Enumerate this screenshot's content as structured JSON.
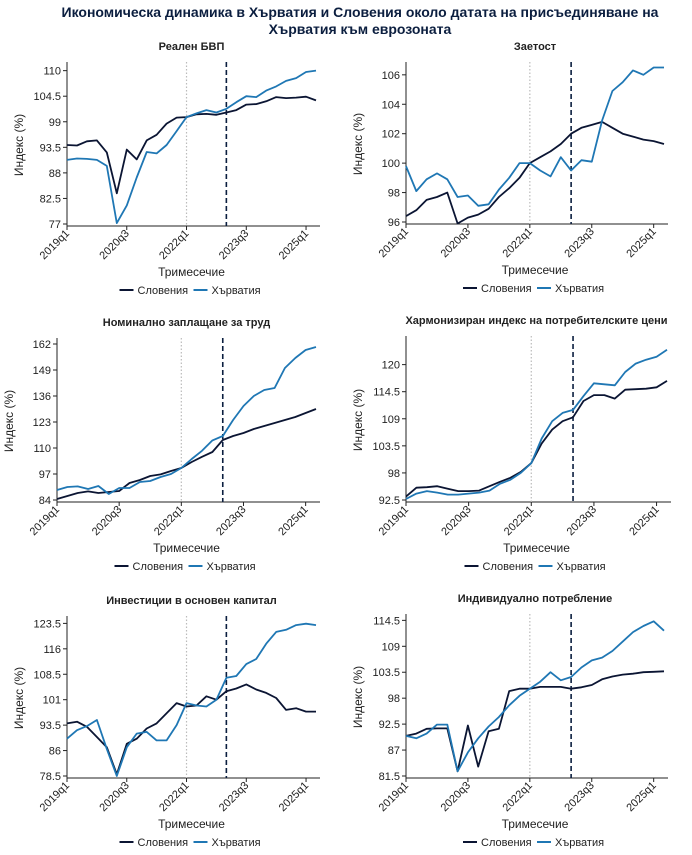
{
  "title_lines": [
    "Икономическа динамика в Хърватия и Словения около датата на присъединяване на",
    "Хърватия към еврозоната"
  ],
  "colors": {
    "slovenia": "#0b1533",
    "croatia": "#1f77b4",
    "axis": "#222222",
    "vline_dotted": "#bbbbbb",
    "vline_dashed": "#0b1e3f"
  },
  "chart_data": [
    {
      "type": "line",
      "title": "Реален БВП",
      "xlabel": "Тримесечие",
      "ylabel": "Индекс (%)",
      "x": [
        "2019q1",
        "2019q2",
        "2019q3",
        "2019q4",
        "2020q1",
        "2020q2",
        "2020q3",
        "2020q4",
        "2021q1",
        "2021q2",
        "2021q3",
        "2021q4",
        "2022q1",
        "2022q2",
        "2022q3",
        "2022q4",
        "2023q1",
        "2023q2",
        "2023q3",
        "2023q4",
        "2024q1",
        "2024q2",
        "2024q3",
        "2024q4",
        "2025q1",
        "2025q2"
      ],
      "x_ticks": [
        "2019q1",
        "2020q3",
        "2022q1",
        "2023q3",
        "2025q1"
      ],
      "y_ticks": [
        77,
        82.5,
        88,
        93.5,
        99,
        104.5,
        110
      ],
      "ylim": [
        77,
        111
      ],
      "vlines": {
        "dotted": "2022q1",
        "dashed": "2023q1"
      },
      "legend": [
        "Словения",
        "Хърватия"
      ],
      "series": [
        {
          "name": "Словения",
          "values": [
            94.0,
            93.9,
            94.8,
            95.0,
            92.4,
            83.6,
            93.0,
            90.9,
            95.0,
            96.2,
            98.6,
            99.9,
            100.0,
            100.6,
            100.7,
            100.5,
            101.0,
            101.5,
            102.7,
            102.8,
            103.4,
            104.3,
            104.1,
            104.2,
            104.4,
            103.6
          ]
        },
        {
          "name": "Хърватия",
          "values": [
            90.8,
            91.1,
            91.0,
            90.8,
            89.5,
            77.2,
            81.0,
            87.0,
            92.5,
            92.2,
            94.0,
            97.0,
            100.0,
            100.8,
            101.5,
            101.0,
            101.8,
            103.2,
            104.5,
            104.3,
            105.7,
            106.6,
            107.8,
            108.4,
            109.7,
            110.0
          ]
        }
      ]
    },
    {
      "type": "line",
      "title": "Заетост",
      "xlabel": "Тримесечие",
      "ylabel": "Индекс (%)",
      "x": [
        "2019q1",
        "2019q2",
        "2019q3",
        "2019q4",
        "2020q1",
        "2020q2",
        "2020q3",
        "2020q4",
        "2021q1",
        "2021q2",
        "2021q3",
        "2021q4",
        "2022q1",
        "2022q2",
        "2022q3",
        "2022q4",
        "2023q1",
        "2023q2",
        "2023q3",
        "2023q4",
        "2024q1",
        "2024q2",
        "2024q3",
        "2024q4",
        "2025q1",
        "2025q2"
      ],
      "x_ticks": [
        "2019q1",
        "2020q3",
        "2022q1",
        "2023q3",
        "2025q1"
      ],
      "y_ticks": [
        96,
        98,
        100,
        102,
        104,
        106
      ],
      "ylim": [
        96,
        106.6
      ],
      "vlines": {
        "dotted": "2022q1",
        "dashed": "2023q1"
      },
      "legend": [
        "Словения",
        "Хърватия"
      ],
      "series": [
        {
          "name": "Словения",
          "values": [
            96.4,
            96.8,
            97.5,
            97.7,
            98.0,
            95.9,
            96.3,
            96.5,
            96.9,
            97.7,
            98.3,
            99.0,
            100.0,
            100.4,
            100.8,
            101.3,
            102.0,
            102.4,
            102.6,
            102.8,
            102.4,
            102.0,
            101.8,
            101.6,
            101.5,
            101.3
          ]
        },
        {
          "name": "Хърватия",
          "values": [
            99.8,
            98.1,
            98.9,
            99.3,
            98.9,
            97.7,
            97.8,
            97.1,
            97.2,
            98.2,
            99.0,
            100.0,
            100.0,
            99.5,
            99.1,
            100.4,
            99.5,
            100.2,
            100.1,
            102.9,
            104.9,
            105.5,
            106.3,
            106.0,
            106.5,
            106.5
          ]
        }
      ]
    },
    {
      "type": "line",
      "title": "Номинално заплащане за труд",
      "xlabel": "Тримесечие",
      "ylabel": "Индекс (%)",
      "x": [
        "2019q1",
        "2019q2",
        "2019q3",
        "2019q4",
        "2020q1",
        "2020q2",
        "2020q3",
        "2020q4",
        "2021q1",
        "2021q2",
        "2021q3",
        "2021q4",
        "2022q1",
        "2022q2",
        "2022q3",
        "2022q4",
        "2023q1",
        "2023q2",
        "2023q3",
        "2023q4",
        "2024q1",
        "2024q2",
        "2024q3",
        "2024q4",
        "2025q1",
        "2025q2"
      ],
      "x_ticks": [
        "2019q1",
        "2020q3",
        "2022q1",
        "2023q3",
        "2025q1"
      ],
      "y_ticks": [
        84,
        97,
        110,
        123,
        136,
        149,
        162
      ],
      "ylim": [
        84,
        163
      ],
      "vlines": {
        "dotted": "2022q1",
        "dashed": "2023q1"
      },
      "legend": [
        "Словения",
        "Хърватия"
      ],
      "series": [
        {
          "name": "Словения",
          "values": [
            84.5,
            86.0,
            87.5,
            88.3,
            87.5,
            88.0,
            88.5,
            92.5,
            94.0,
            96.0,
            96.8,
            98.5,
            100.0,
            103.0,
            105.6,
            108.0,
            114.0,
            116.0,
            117.5,
            119.5,
            121.0,
            122.5,
            124.0,
            125.5,
            127.5,
            129.5
          ]
        },
        {
          "name": "Хърватия",
          "values": [
            89.0,
            90.5,
            90.8,
            89.5,
            91.0,
            87.0,
            90.0,
            90.0,
            93.0,
            93.5,
            95.5,
            97.0,
            100.0,
            104.5,
            108.6,
            113.8,
            116.0,
            124.0,
            131.0,
            136.0,
            139.0,
            140.0,
            150.0,
            155.0,
            159.0,
            160.5
          ]
        }
      ]
    },
    {
      "type": "line",
      "title": "Хармонизиран индекс на потребителските цени",
      "xlabel": "Тримесечие",
      "ylabel": "Индекс (%)",
      "x": [
        "2019q1",
        "2019q2",
        "2019q3",
        "2019q4",
        "2020q1",
        "2020q2",
        "2020q3",
        "2020q4",
        "2021q1",
        "2021q2",
        "2021q3",
        "2021q4",
        "2022q1",
        "2022q2",
        "2022q3",
        "2022q4",
        "2023q1",
        "2023q2",
        "2023q3",
        "2023q4",
        "2024q1",
        "2024q2",
        "2024q3",
        "2024q4",
        "2025q1",
        "2025q2"
      ],
      "x_ticks": [
        "2019q1",
        "2020q3",
        "2022q1",
        "2023q3",
        "2025q1"
      ],
      "y_ticks": [
        92.5,
        98,
        103.5,
        109,
        114.5,
        120
      ],
      "ylim": [
        92.5,
        125
      ],
      "vlines": {
        "dotted": "2022q1",
        "dashed": "2023q1"
      },
      "legend": [
        "Словения",
        "Хърватия"
      ],
      "series": [
        {
          "name": "Словения",
          "values": [
            93.2,
            95.0,
            95.1,
            95.3,
            94.8,
            94.3,
            94.3,
            94.4,
            95.3,
            96.2,
            97.0,
            98.2,
            100.0,
            104.0,
            106.8,
            108.5,
            109.3,
            112.6,
            113.8,
            113.8,
            113.1,
            114.9,
            115.0,
            115.1,
            115.4,
            116.7
          ]
        },
        {
          "name": "Хърватия",
          "values": [
            92.7,
            93.8,
            94.3,
            94.0,
            93.6,
            93.6,
            93.8,
            94.0,
            94.4,
            95.8,
            96.6,
            98.0,
            100.0,
            105.0,
            108.5,
            110.2,
            110.8,
            113.6,
            116.2,
            116.0,
            115.8,
            118.5,
            120.2,
            121.0,
            121.6,
            123.0
          ]
        }
      ]
    },
    {
      "type": "line",
      "title": "Инвестиции в основен капитал",
      "xlabel": "Тримесечие",
      "ylabel": "Индекс (%)",
      "x": [
        "2019q1",
        "2019q2",
        "2019q3",
        "2019q4",
        "2020q1",
        "2020q2",
        "2020q3",
        "2020q4",
        "2021q1",
        "2021q2",
        "2021q3",
        "2021q4",
        "2022q1",
        "2022q2",
        "2022q3",
        "2022q4",
        "2023q1",
        "2023q2",
        "2023q3",
        "2023q4",
        "2024q1",
        "2024q2",
        "2024q3",
        "2024q4",
        "2025q1",
        "2025q2"
      ],
      "x_ticks": [
        "2019q1",
        "2020q3",
        "2022q1",
        "2023q3",
        "2025q1"
      ],
      "y_ticks": [
        78.5,
        86,
        93.5,
        101,
        108.5,
        116,
        123.5
      ],
      "ylim": [
        78.5,
        124.5
      ],
      "vlines": {
        "dotted": "2022q1",
        "dashed": "2023q1"
      },
      "legend": [
        "Словения",
        "Хърватия"
      ],
      "series": [
        {
          "name": "Словения",
          "values": [
            94.0,
            94.5,
            93.0,
            90.0,
            87.0,
            79.0,
            88.0,
            89.5,
            92.5,
            94.0,
            97.0,
            100.0,
            99.0,
            99.3,
            102.0,
            101.0,
            103.5,
            104.3,
            105.5,
            104.0,
            103.0,
            101.5,
            98.0,
            98.5,
            97.5,
            97.5
          ]
        },
        {
          "name": "Хърватия",
          "values": [
            89.5,
            92.0,
            93.2,
            95.0,
            86.5,
            78.5,
            87.0,
            91.0,
            91.5,
            89.0,
            89.0,
            93.5,
            100.0,
            99.3,
            99.0,
            101.0,
            107.5,
            108.0,
            111.5,
            113.0,
            117.5,
            121.0,
            121.6,
            123.0,
            123.4,
            123.0
          ]
        }
      ]
    },
    {
      "type": "line",
      "title": "Индивидуално потребление",
      "xlabel": "Тримесечие",
      "ylabel": "Индекс (%)",
      "x": [
        "2019q1",
        "2019q2",
        "2019q3",
        "2019q4",
        "2020q1",
        "2020q2",
        "2020q3",
        "2020q4",
        "2021q1",
        "2021q2",
        "2021q3",
        "2021q4",
        "2022q1",
        "2022q2",
        "2022q3",
        "2022q4",
        "2023q1",
        "2023q2",
        "2023q3",
        "2023q4",
        "2024q1",
        "2024q2",
        "2024q3",
        "2024q4",
        "2025q1",
        "2025q2"
      ],
      "x_ticks": [
        "2019q1",
        "2020q3",
        "2022q1",
        "2023q3",
        "2025q1"
      ],
      "y_ticks": [
        81.5,
        87,
        92.5,
        98,
        103.5,
        109,
        114.5
      ],
      "ylim": [
        81.5,
        115
      ],
      "vlines": {
        "dotted": "2022q1",
        "dashed": "2023q1"
      },
      "legend": [
        "Словения",
        "Хърватия"
      ],
      "series": [
        {
          "name": "Словения",
          "values": [
            90.0,
            90.5,
            91.5,
            91.6,
            91.6,
            82.5,
            92.2,
            83.5,
            91.0,
            91.5,
            99.5,
            100.0,
            100.0,
            100.4,
            100.4,
            100.4,
            100.0,
            100.3,
            100.8,
            102.0,
            102.6,
            103.0,
            103.2,
            103.5,
            103.6,
            103.7
          ]
        },
        {
          "name": "Хърватия",
          "values": [
            90.0,
            89.5,
            90.5,
            92.4,
            92.4,
            82.5,
            86.5,
            89.5,
            92.0,
            94.0,
            96.5,
            98.5,
            100.0,
            101.5,
            103.5,
            101.8,
            102.5,
            104.5,
            106.0,
            106.6,
            108.0,
            110.0,
            112.0,
            113.3,
            114.3,
            112.3
          ]
        }
      ]
    }
  ]
}
